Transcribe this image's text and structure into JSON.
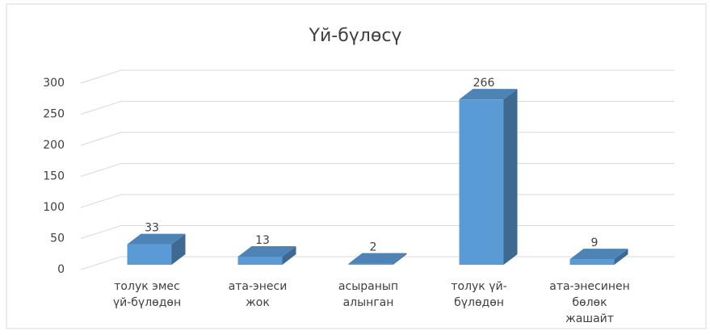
{
  "chart_data": {
    "type": "bar3d",
    "title": "Үй-бүлөсү",
    "categories": [
      [
        "толук эмес",
        "үй-бүлөдөн"
      ],
      [
        "ата-энеси",
        "жок"
      ],
      [
        "асыранып",
        "алынган"
      ],
      [
        "толук үй-",
        "бүлөдөн"
      ],
      [
        "ата-энесинен",
        "бөлөк",
        "жашайт"
      ]
    ],
    "values": [
      33,
      13,
      2,
      266,
      9
    ],
    "color": "#5b9bd5",
    "ylim": [
      0,
      300
    ],
    "yticks": [
      0,
      50,
      100,
      150,
      200,
      250,
      300
    ],
    "grid": true
  }
}
